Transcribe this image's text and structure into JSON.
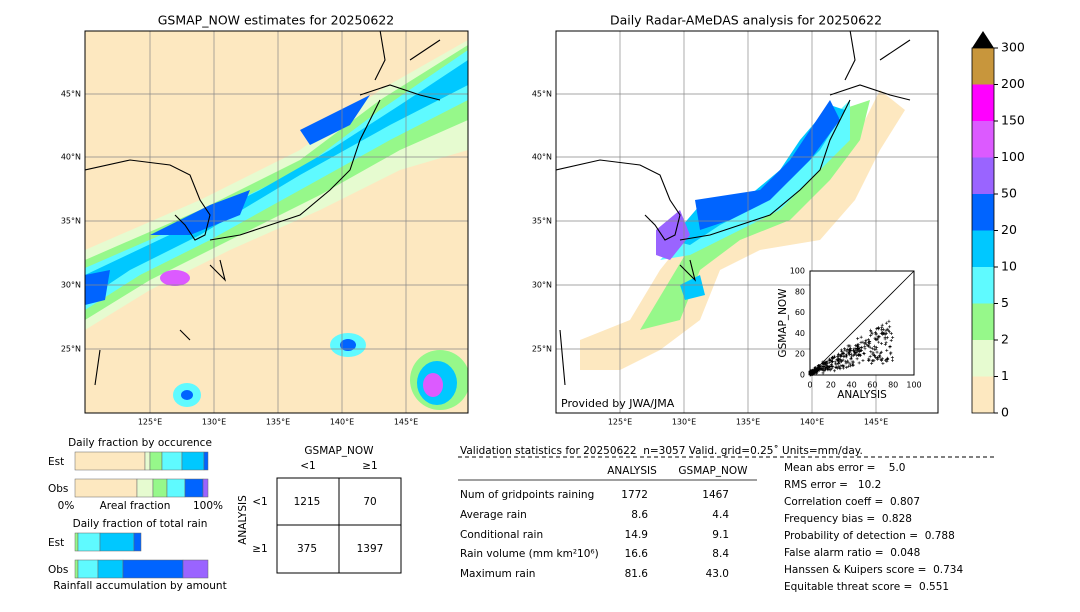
{
  "left_map": {
    "title": "GSMAP_NOW estimates for 20250622",
    "lat_labels": [
      "45°N",
      "40°N",
      "35°N",
      "30°N",
      "25°N"
    ],
    "lon_labels": [
      "125°E",
      "130°E",
      "135°E",
      "140°E",
      "145°E"
    ]
  },
  "right_map": {
    "title": "Daily Radar-AMeDAS analysis for 20250622",
    "lat_labels": [
      "45°N",
      "40°N",
      "35°N",
      "30°N",
      "25°N"
    ],
    "lon_labels": [
      "125°E",
      "130°E",
      "135°E",
      "140°E",
      "145°E"
    ],
    "credit": "Provided by JWA/JMA"
  },
  "colorbar": {
    "labels": [
      "0",
      "1",
      "2",
      "5",
      "10",
      "20",
      "50",
      "100",
      "150",
      "200",
      "300"
    ],
    "colors": [
      "#fde8c0",
      "#e6fbd0",
      "#96f88a",
      "#5ffaff",
      "#00c8ff",
      "#0064ff",
      "#9a64ff",
      "#dc5aff",
      "#ff00ff",
      "#c8963c"
    ]
  },
  "scatter": {
    "ylabel": "GSMAP_NOW",
    "xlabel": "ANALYSIS",
    "ticks": [
      "0",
      "20",
      "40",
      "60",
      "80",
      "100"
    ]
  },
  "occurrence": {
    "title": "Daily fraction by occurence",
    "rows": [
      "Est",
      "Obs"
    ],
    "axis_left": "0%",
    "axis_title": "Areal fraction",
    "axis_right": "100%"
  },
  "total_rain": {
    "title": "Daily fraction of total rain",
    "rows": [
      "Est",
      "Obs"
    ],
    "footer": "Rainfall accumulation by amount"
  },
  "contingency": {
    "col_title": "GSMAP_NOW",
    "cols": [
      "<1",
      "≥1"
    ],
    "row_title": "ANALYSIS",
    "rows": [
      "<1",
      "≥1"
    ],
    "cells": [
      [
        "1215",
        "70"
      ],
      [
        "375",
        "1397"
      ]
    ]
  },
  "validation": {
    "header": "Validation statistics for 20250622  n=3057 Valid. grid=0.25˚ Units=mm/day.",
    "columns": [
      "ANALYSIS",
      "GSMAP_NOW"
    ],
    "rows": [
      [
        "Num of gridpoints raining",
        "1772",
        "1467"
      ],
      [
        "Average rain",
        "8.6",
        "4.4"
      ],
      [
        "Conditional rain",
        "14.9",
        "9.1"
      ],
      [
        "Rain volume (mm km²10⁶)",
        "16.6",
        "8.4"
      ],
      [
        "Maximum rain",
        "81.6",
        "43.0"
      ]
    ],
    "scores": [
      "Mean abs error =    5.0",
      "RMS error =   10.2",
      "Correlation coeff =  0.807",
      "Frequency bias =  0.828",
      "Probability of detection =  0.788",
      "False alarm ratio =  0.048",
      "Hanssen & Kuipers score =  0.734",
      "Equitable threat score =  0.551"
    ]
  }
}
